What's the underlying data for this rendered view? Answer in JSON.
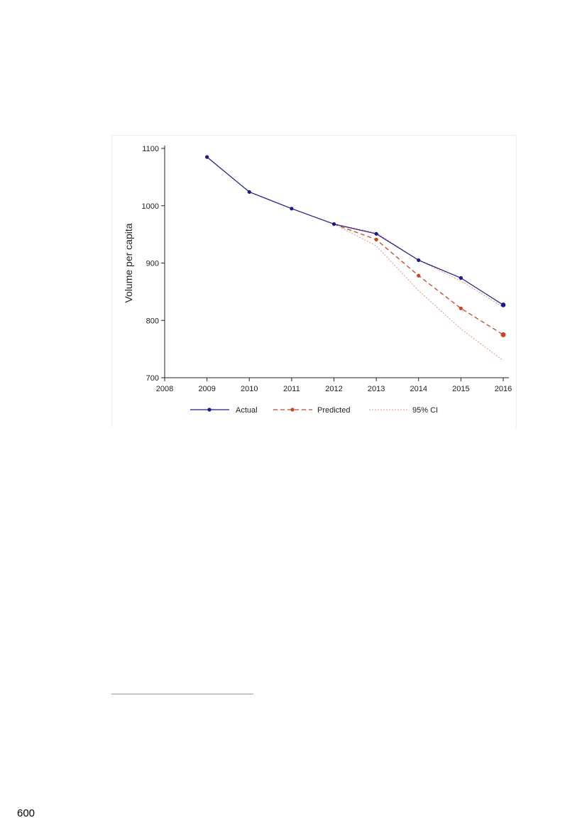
{
  "page": {
    "page_number": "600"
  },
  "chart_data": {
    "type": "line",
    "title": "",
    "xlabel": "",
    "ylabel": "Volume per capita",
    "xlim": [
      2008,
      2016
    ],
    "ylim": [
      700,
      1100
    ],
    "x_ticks": [
      "2008",
      "2009",
      "2010",
      "2011",
      "2012",
      "2013",
      "2014",
      "2015",
      "2016"
    ],
    "y_ticks": [
      "700",
      "800",
      "900",
      "1000",
      "1100"
    ],
    "grid": false,
    "legend_position": "bottom",
    "series": [
      {
        "name": "Actual",
        "color": "#1a1a8c",
        "style": "solid-markers",
        "x": [
          2009,
          2010,
          2011,
          2012,
          2013,
          2014,
          2015,
          2016
        ],
        "values": [
          1085,
          1024,
          995,
          968,
          951,
          905,
          874,
          827
        ]
      },
      {
        "name": "Predicted",
        "color": "#c8461e",
        "style": "dashed-markers",
        "x": [
          2012,
          2013,
          2014,
          2015,
          2016
        ],
        "values": [
          968,
          941,
          878,
          821,
          775
        ]
      },
      {
        "name": "95% CI",
        "color": "#e8907a",
        "style": "dotted",
        "bands": [
          {
            "x": [
              2012,
              2013,
              2014,
              2015,
              2016
            ],
            "values": [
              968,
              953,
              905,
              869,
              823
            ]
          },
          {
            "x": [
              2012,
              2013,
              2014,
              2015,
              2016
            ],
            "values": [
              968,
              930,
              852,
              785,
              730
            ]
          }
        ]
      }
    ]
  }
}
